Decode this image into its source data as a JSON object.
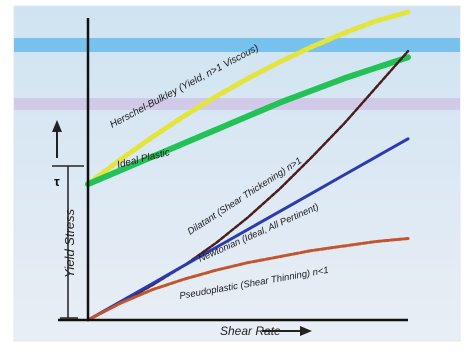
{
  "chart_data": {
    "type": "line",
    "title": "",
    "xlabel": "Shear Rate",
    "ylabel": "Yield Stress",
    "yield_marker_label": "τ",
    "x": [
      0,
      1,
      2,
      3,
      4,
      5,
      6,
      7,
      8,
      9,
      10
    ],
    "xlim": [
      0,
      10
    ],
    "ylim": [
      0,
      10
    ],
    "series": [
      {
        "name": "Herschel-Bulkley (Yield, n>1 Viscous)",
        "color": "#e4e43a",
        "values": [
          4.5,
          5.3,
          6.05,
          6.75,
          7.4,
          8.0,
          8.55,
          9.05,
          9.5,
          9.9,
          10.2
        ]
      },
      {
        "name": "Ideal Plastic",
        "color": "#22c256",
        "values": [
          4.5,
          4.95,
          5.4,
          5.85,
          6.3,
          6.75,
          7.2,
          7.6,
          8.0,
          8.35,
          8.7
        ]
      },
      {
        "name": "Dilatant (Shear Thickening) n>1",
        "color": "#4a1c1c",
        "values": [
          0,
          0.55,
          1.15,
          1.8,
          2.55,
          3.4,
          4.35,
          5.4,
          6.5,
          7.7,
          8.9
        ]
      },
      {
        "name": "Newtonian (Ideal, All Pertinent)",
        "color": "#2a3bb0",
        "values": [
          0,
          0.6,
          1.2,
          1.8,
          2.4,
          3.0,
          3.6,
          4.2,
          4.8,
          5.4,
          6.0
        ]
      },
      {
        "name": "Pseudoplastic (Shear Thinning) n<1",
        "color": "#c2552c",
        "values": [
          0,
          0.55,
          1.0,
          1.35,
          1.65,
          1.9,
          2.1,
          2.3,
          2.45,
          2.6,
          2.7
        ]
      }
    ],
    "grid": false,
    "legend": "none"
  }
}
